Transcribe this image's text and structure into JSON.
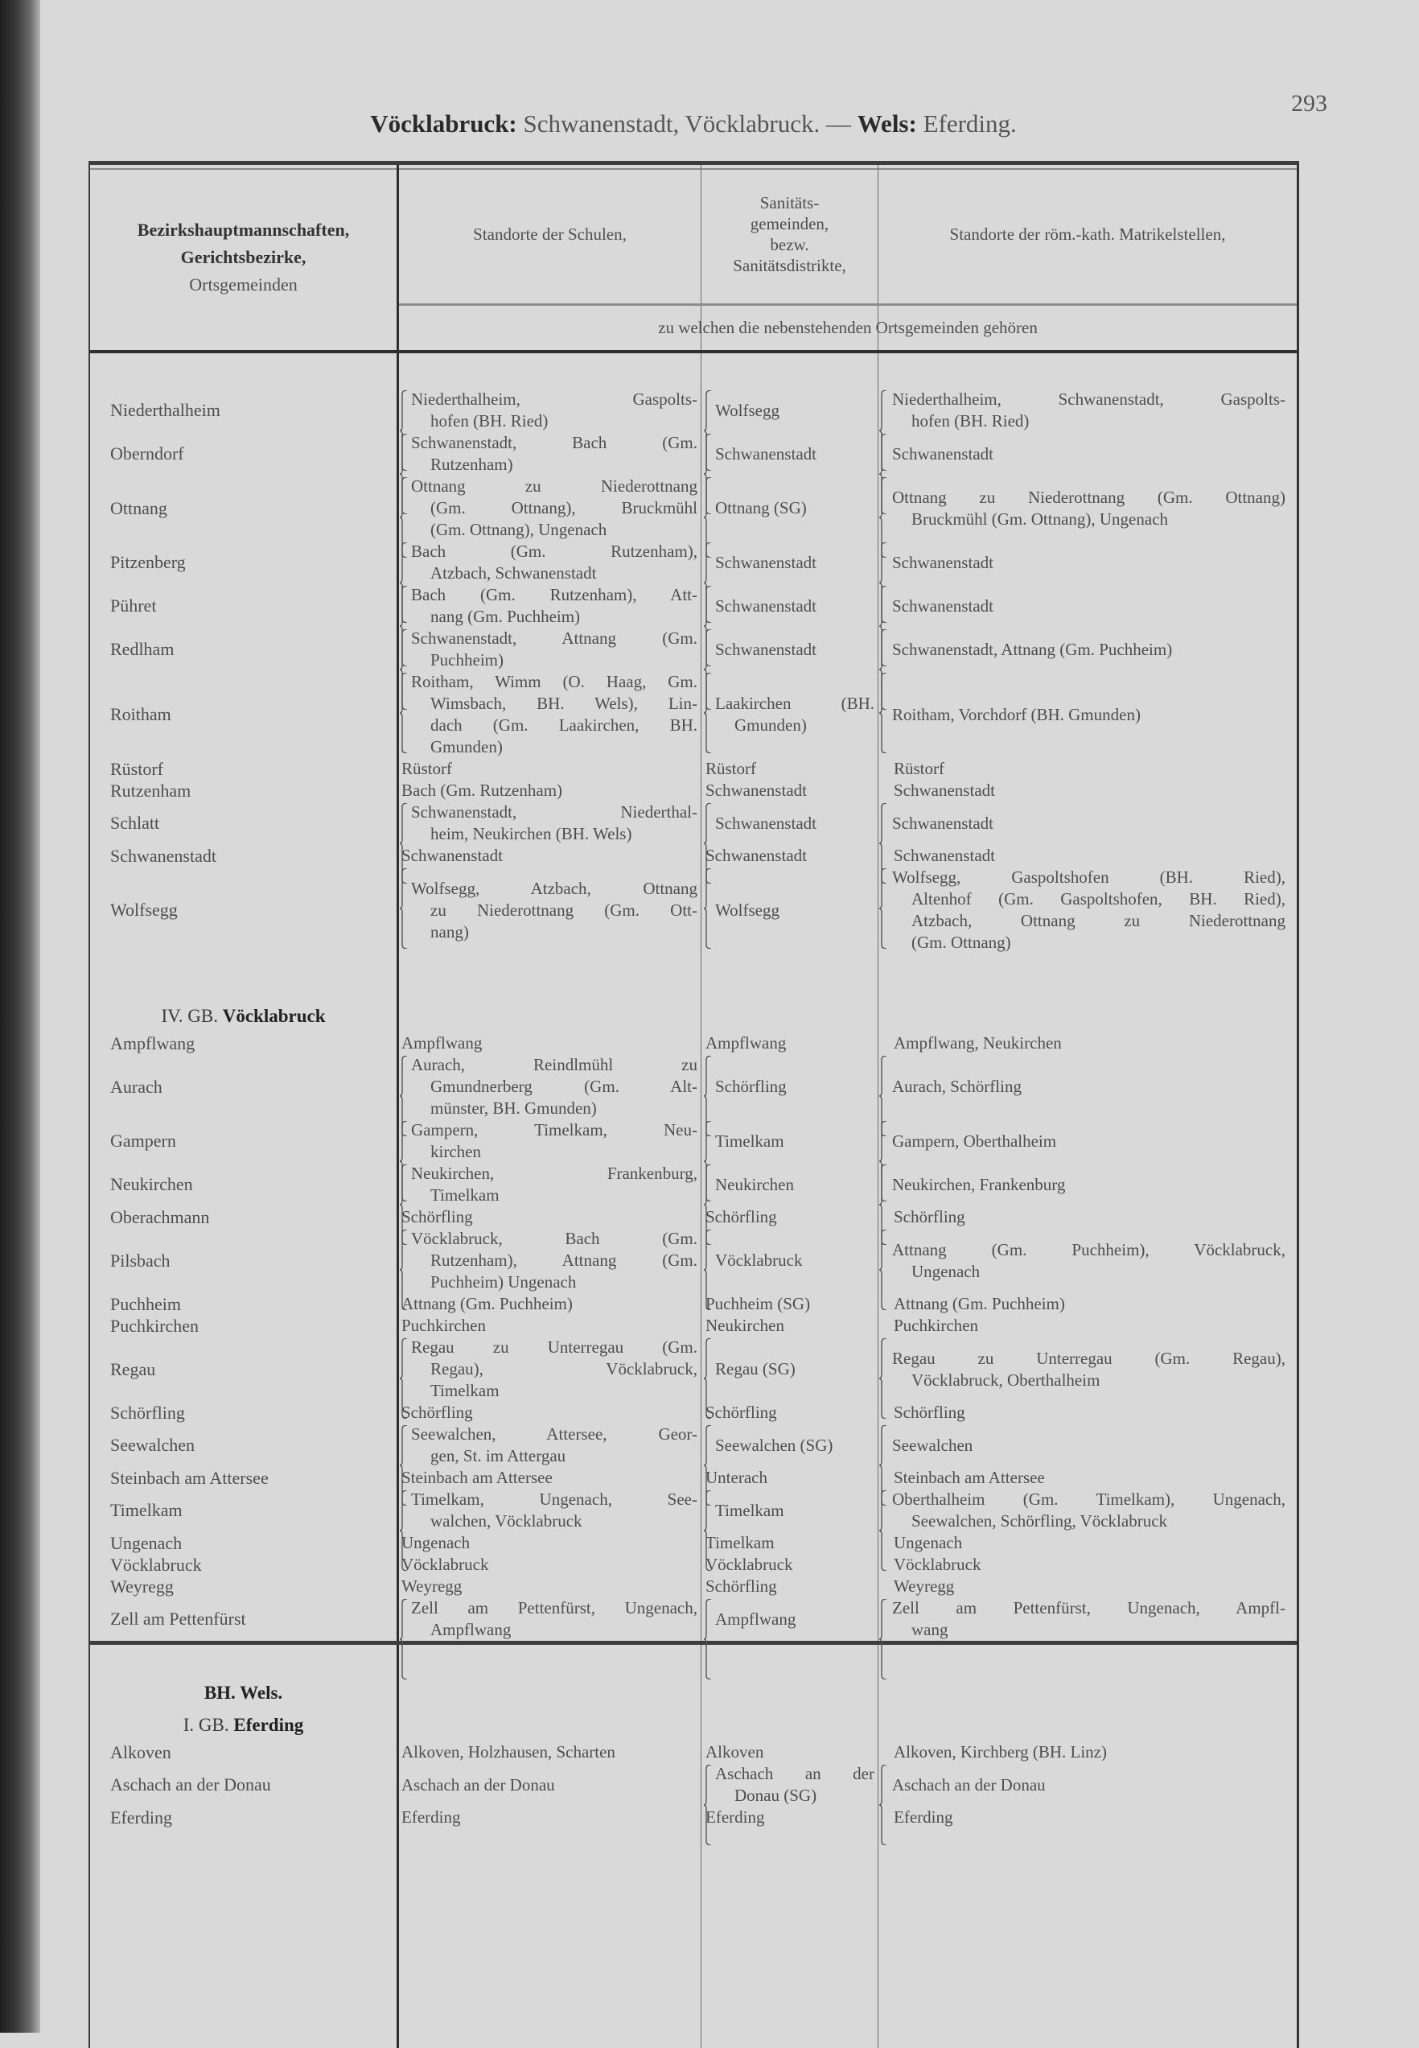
{
  "page_number": "293",
  "title": {
    "bold1": "Vöcklabruck:",
    "text1": "Schwanenstadt, Vöcklabruck. —",
    "bold2": "Wels:",
    "text2": "Eferding."
  },
  "header": {
    "col1": {
      "line1": "Bezirkshauptmannschaften,",
      "line2": "Gerichtsbezirke,",
      "line3": "Ortsgemeinden"
    },
    "col2": "Standorte der Schulen,",
    "col3": [
      "Sanitäts-",
      "gemeinden,",
      "bezw.",
      "Sanitätsdistrikte,"
    ],
    "col4": "Standorte der röm.-kath. Matrikelstellen,",
    "subheader": "zu welchen die nebenstehenden Ortsgemeinden gehören"
  },
  "sections": [
    {
      "headings": [],
      "rows": [
        {
          "place": "Niederthalheim",
          "schools": [
            "Niederthalheim, Gaspolts-",
            "hofen (BH. Ried)"
          ],
          "sanitary": [
            "Wolfsegg"
          ],
          "parish": [
            "Niederthalheim, Schwanenstadt, Gaspolts-",
            "hofen (BH. Ried)"
          ]
        },
        {
          "place": "Oberndorf",
          "schools": [
            "Schwanenstadt, Bach (Gm.",
            "Rutzenham)"
          ],
          "sanitary": [
            "Schwanenstadt"
          ],
          "parish": [
            "Schwanenstadt"
          ]
        },
        {
          "place": "Ottnang",
          "schools": [
            "Ottnang zu Niederottnang",
            "(Gm. Ottnang), Bruckmühl",
            "(Gm. Ottnang), Ungenach"
          ],
          "sanitary": [
            "Ottnang (SG)"
          ],
          "parish": [
            "Ottnang zu Niederottnang (Gm. Ottnang)",
            "Bruckmühl (Gm. Ottnang), Ungenach"
          ]
        },
        {
          "place": "Pitzenberg",
          "schools": [
            "Bach (Gm. Rutzenham),",
            "Atzbach, Schwanenstadt"
          ],
          "sanitary": [
            "Schwanenstadt"
          ],
          "parish": [
            "Schwanenstadt"
          ]
        },
        {
          "place": "Pühret",
          "schools": [
            "Bach (Gm. Rutzenham), Att-",
            "nang (Gm. Puchheim)"
          ],
          "sanitary": [
            "Schwanenstadt"
          ],
          "parish": [
            "Schwanenstadt"
          ]
        },
        {
          "place": "Redlham",
          "schools": [
            "Schwanenstadt, Attnang (Gm.",
            "Puchheim)"
          ],
          "sanitary": [
            "Schwanenstadt"
          ],
          "parish": [
            "Schwanenstadt, Attnang (Gm. Puchheim)"
          ]
        },
        {
          "place": "Roitham",
          "schools": [
            "Roitham, Wimm (O. Haag, Gm.",
            "Wimsbach, BH. Wels), Lin-",
            "dach (Gm. Laakirchen, BH.",
            "Gmunden)"
          ],
          "sanitary": [
            "Laakirchen (BH.",
            "Gmunden)"
          ],
          "parish": [
            "Roitham, Vorchdorf (BH. Gmunden)"
          ]
        },
        {
          "place": "Rüstorf",
          "schools": [
            "Rüstorf"
          ],
          "sanitary": [
            "Rüstorf"
          ],
          "parish": [
            "Rüstorf"
          ]
        },
        {
          "place": "Rutzenham",
          "schools": [
            "Bach (Gm. Rutzenham)"
          ],
          "sanitary": [
            "Schwanenstadt"
          ],
          "parish": [
            "Schwanenstadt"
          ]
        },
        {
          "place": "Schlatt",
          "schools": [
            "Schwanenstadt, Niederthal-",
            "heim, Neukirchen (BH. Wels)"
          ],
          "sanitary": [
            "Schwanenstadt"
          ],
          "parish": [
            "Schwanenstadt"
          ]
        },
        {
          "place": "Schwanenstadt",
          "schools": [
            "Schwanenstadt"
          ],
          "sanitary": [
            "Schwanenstadt"
          ],
          "parish": [
            "Schwanenstadt"
          ]
        },
        {
          "place": "Wolfsegg",
          "schools": [
            "Wolfsegg, Atzbach, Ottnang",
            "zu Niederottnang (Gm. Ott-",
            "nang)"
          ],
          "sanitary": [
            "Wolfsegg"
          ],
          "parish": [
            "Wolfsegg, Gaspoltshofen (BH. Ried),",
            "Altenhof (Gm. Gaspoltshofen, BH. Ried),",
            "Atzbach, Ottnang zu Niederottnang",
            "(Gm. Ottnang)"
          ]
        }
      ]
    },
    {
      "headings": [
        {
          "prefix": "IV. GB.",
          "name": "Vöcklabruck"
        }
      ],
      "rows": [
        {
          "place": "Ampflwang",
          "schools": [
            "Ampflwang"
          ],
          "sanitary": [
            "Ampflwang"
          ],
          "parish": [
            "Ampflwang, Neukirchen"
          ]
        },
        {
          "place": "Aurach",
          "schools": [
            "Aurach, Reindlmühl zu",
            "Gmundnerberg (Gm. Alt-",
            "münster, BH. Gmunden)"
          ],
          "sanitary": [
            "Schörfling"
          ],
          "parish": [
            "Aurach, Schörfling"
          ]
        },
        {
          "place": "Gampern",
          "schools": [
            "Gampern, Timelkam, Neu-",
            "kirchen"
          ],
          "sanitary": [
            "Timelkam"
          ],
          "parish": [
            "Gampern, Oberthalheim"
          ]
        },
        {
          "place": "Neukirchen",
          "schools": [
            "Neukirchen, Frankenburg,",
            "Timelkam"
          ],
          "sanitary": [
            "Neukirchen"
          ],
          "parish": [
            "Neukirchen, Frankenburg"
          ]
        },
        {
          "place": "Oberachmann",
          "schools": [
            "Schörfling"
          ],
          "sanitary": [
            "Schörfling"
          ],
          "parish": [
            "Schörfling"
          ]
        },
        {
          "place": "Pilsbach",
          "schools": [
            "Vöcklabruck, Bach (Gm.",
            "Rutzenham), Attnang (Gm.",
            "Puchheim) Ungenach"
          ],
          "sanitary": [
            "Vöcklabruck"
          ],
          "parish": [
            "Attnang (Gm. Puchheim), Vöcklabruck,",
            "Ungenach"
          ]
        },
        {
          "place": "Puchheim",
          "schools": [
            "Attnang (Gm. Puchheim)"
          ],
          "sanitary": [
            "Puchheim (SG)"
          ],
          "parish": [
            "Attnang (Gm. Puchheim)"
          ]
        },
        {
          "place": "Puchkirchen",
          "schools": [
            "Puchkirchen"
          ],
          "sanitary": [
            "Neukirchen"
          ],
          "parish": [
            "Puchkirchen"
          ]
        },
        {
          "place": "Regau",
          "schools": [
            "Regau zu Unterregau (Gm.",
            "Regau), Vöcklabruck,",
            "Timelkam"
          ],
          "sanitary": [
            "Regau (SG)"
          ],
          "parish": [
            "Regau zu Unterregau (Gm. Regau),",
            "Vöcklabruck, Oberthalheim"
          ]
        },
        {
          "place": "Schörfling",
          "schools": [
            "Schörfling"
          ],
          "sanitary": [
            "Schörfling"
          ],
          "parish": [
            "Schörfling"
          ]
        },
        {
          "place": "Seewalchen",
          "schools": [
            "Seewalchen, Attersee, Geor-",
            "gen, St. im Attergau"
          ],
          "sanitary": [
            "Seewalchen (SG)"
          ],
          "parish": [
            "Seewalchen"
          ]
        },
        {
          "place": "Steinbach am Attersee",
          "schools": [
            "Steinbach am Attersee"
          ],
          "sanitary": [
            "Unterach"
          ],
          "parish": [
            "Steinbach am Attersee"
          ]
        },
        {
          "place": "Timelkam",
          "schools": [
            "Timelkam, Ungenach, See-",
            "walchen, Vöcklabruck"
          ],
          "sanitary": [
            "Timelkam"
          ],
          "parish": [
            "Oberthalheim (Gm. Timelkam), Ungenach,",
            "Seewalchen, Schörfling, Vöcklabruck"
          ]
        },
        {
          "place": "Ungenach",
          "schools": [
            "Ungenach"
          ],
          "sanitary": [
            "Timelkam"
          ],
          "parish": [
            "Ungenach"
          ]
        },
        {
          "place": "Vöcklabruck",
          "schools": [
            "Vöcklabruck"
          ],
          "sanitary": [
            "Vöcklabruck"
          ],
          "parish": [
            "Vöcklabruck"
          ]
        },
        {
          "place": "Weyregg",
          "schools": [
            "Weyregg"
          ],
          "sanitary": [
            "Schörfling"
          ],
          "parish": [
            "Weyregg"
          ]
        },
        {
          "place": "Zell am Pettenfürst",
          "schools": [
            "Zell am Pettenfürst, Ungenach,",
            "Ampflwang"
          ],
          "sanitary": [
            "Ampflwang"
          ],
          "parish": [
            "Zell am Pettenfürst, Ungenach, Ampfl-",
            "wang"
          ]
        }
      ]
    },
    {
      "headings": [
        {
          "prefix": "",
          "name": "BH. Wels."
        },
        {
          "prefix": "I. GB.",
          "name": "Eferding"
        }
      ],
      "rows": [
        {
          "place": "Alkoven",
          "schools": [
            "Alkoven, Holzhausen, Scharten"
          ],
          "sanitary": [
            "Alkoven"
          ],
          "parish": [
            "Alkoven, Kirchberg (BH. Linz)"
          ]
        },
        {
          "place": "Aschach an der Donau",
          "schools": [
            "Aschach an der Donau"
          ],
          "sanitary": [
            "Aschach an der",
            "Donau (SG)"
          ],
          "parish": [
            "Aschach an der Donau"
          ]
        },
        {
          "place": "Eferding",
          "schools": [
            "Eferding"
          ],
          "sanitary": [
            "Eferding"
          ],
          "parish": [
            "Eferding"
          ]
        }
      ]
    }
  ]
}
